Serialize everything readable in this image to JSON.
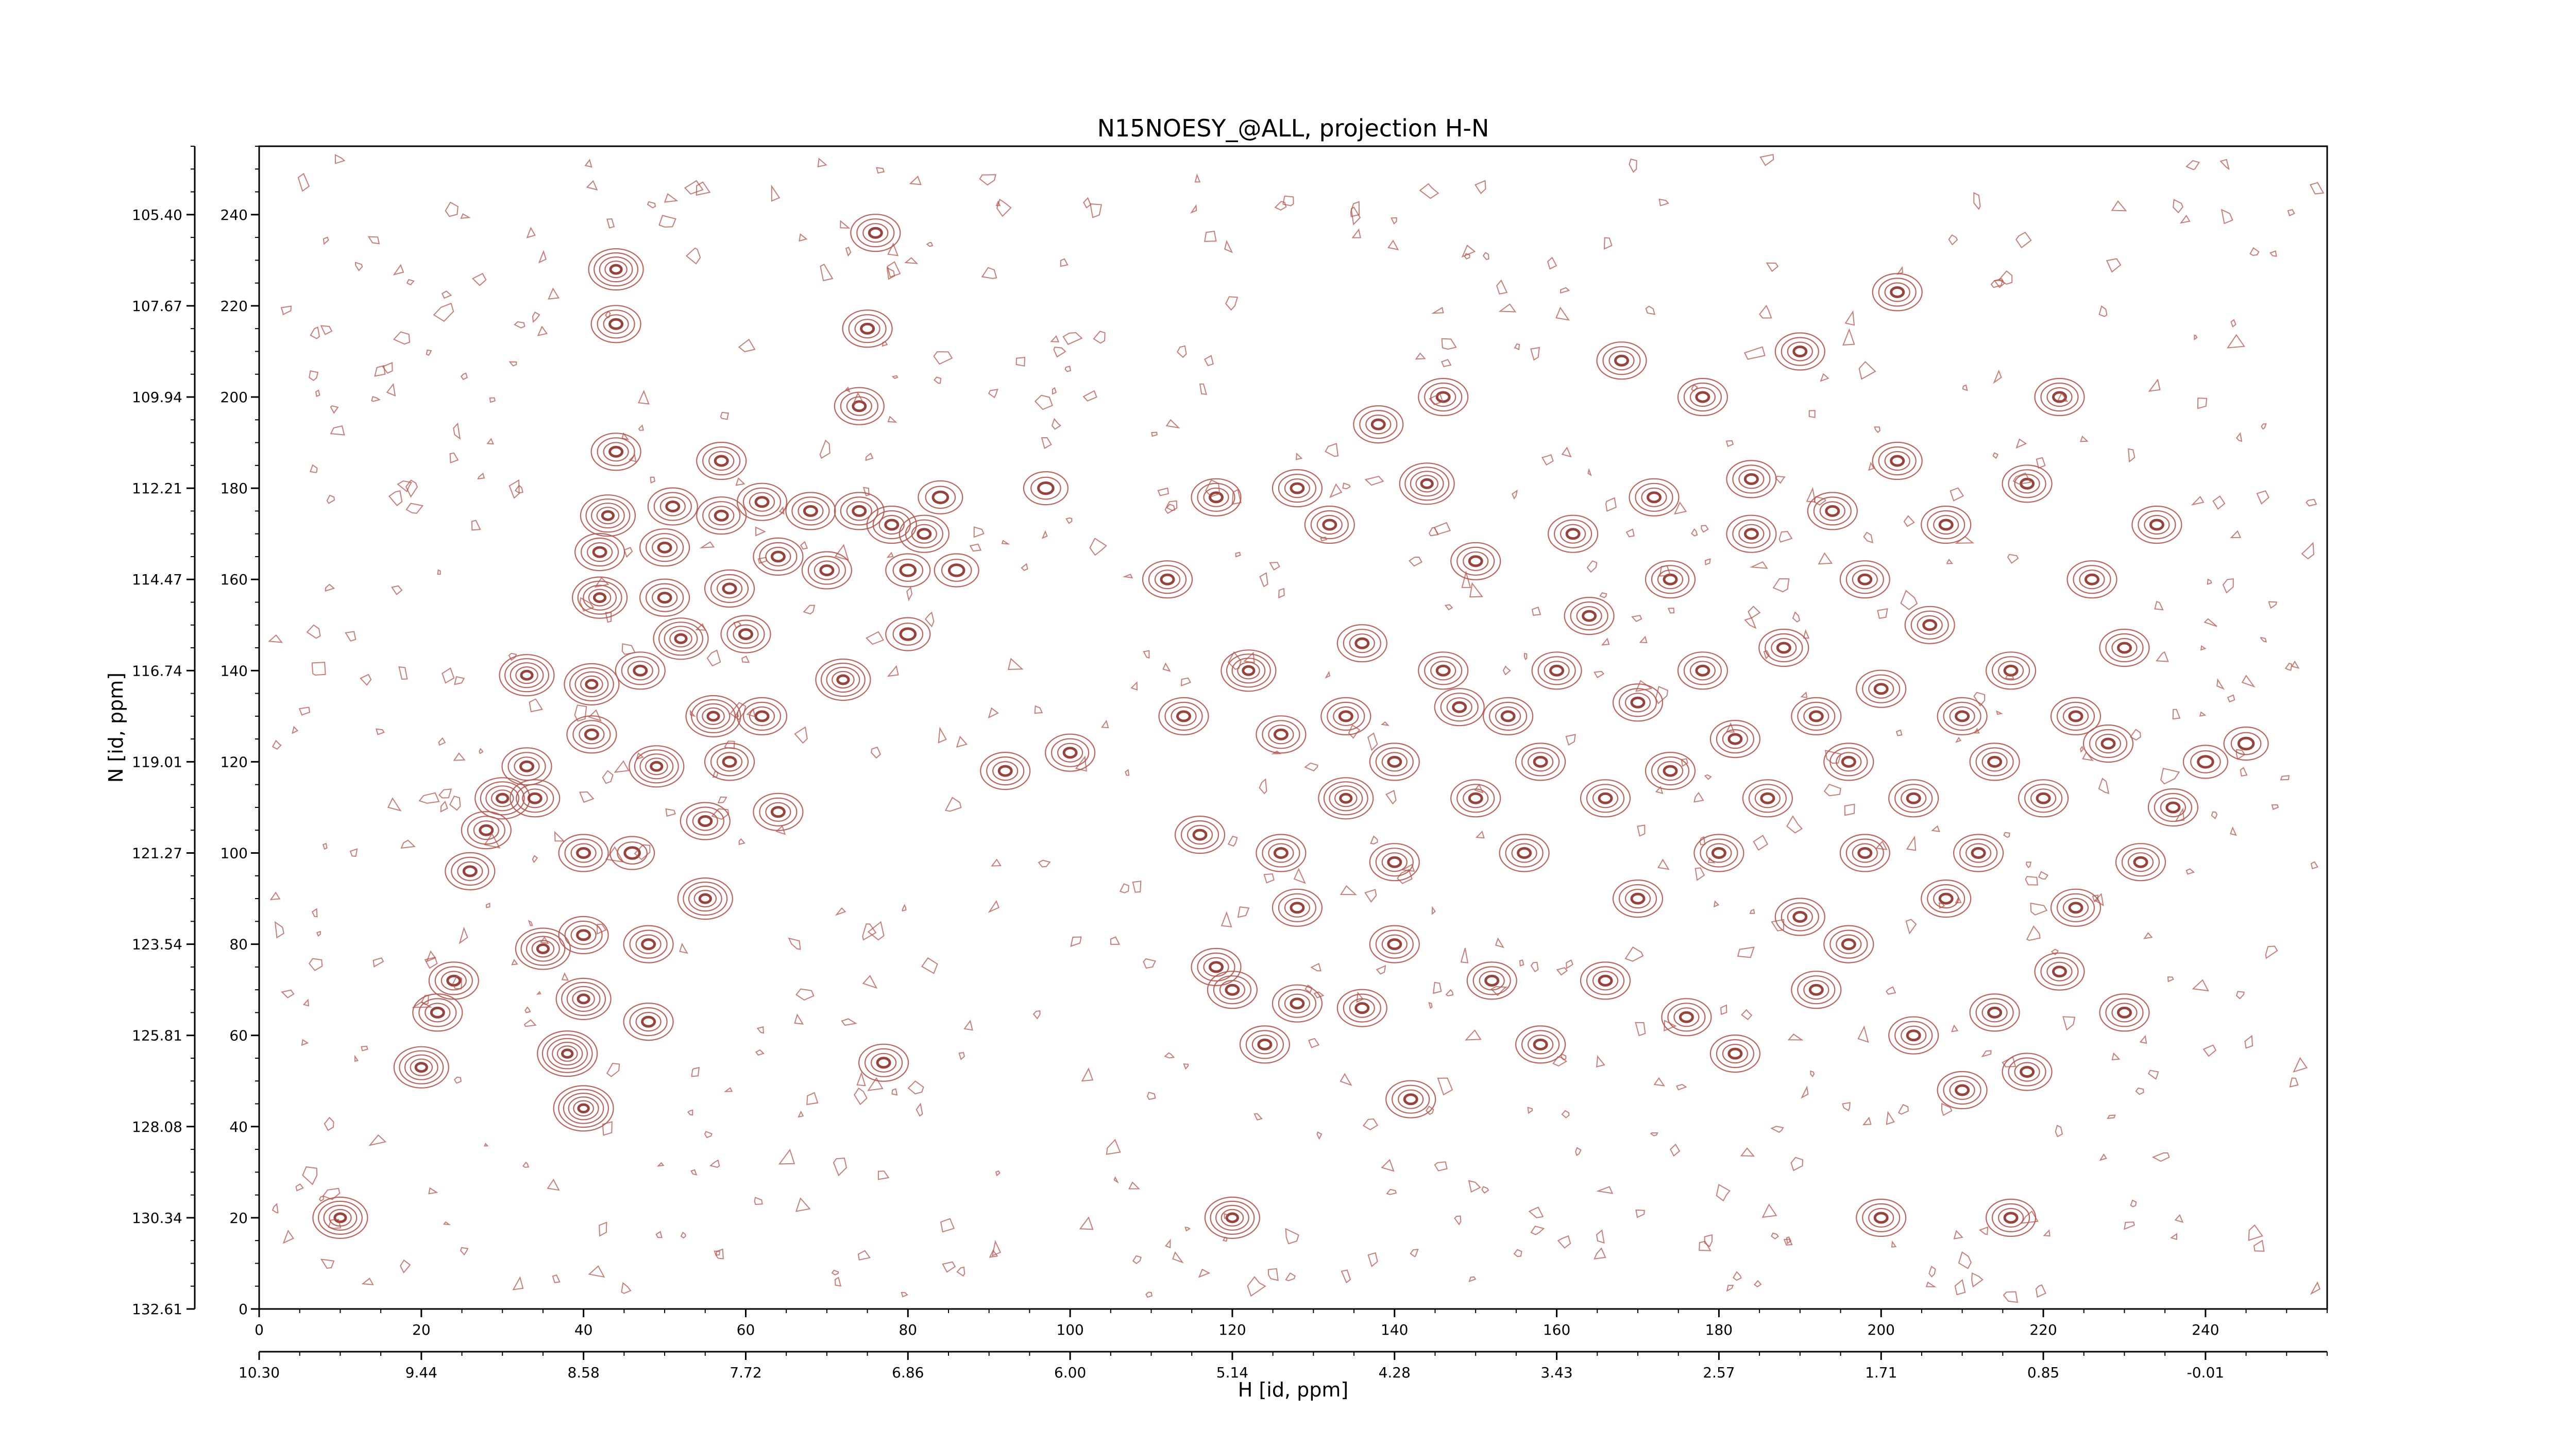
{
  "chart_data": {
    "type": "contour",
    "title": "N15NOESY_@ALL, projection H-N",
    "xlabel_bottom": "H [id, ppm]",
    "ylabel_left": "N [id, ppm]",
    "x_index_ticks": [
      0,
      20,
      40,
      60,
      80,
      100,
      120,
      140,
      160,
      180,
      200,
      220,
      240
    ],
    "x_index_range": [
      0,
      255
    ],
    "y_index_ticks": [
      0,
      20,
      40,
      60,
      80,
      100,
      120,
      140,
      160,
      180,
      200,
      220,
      240
    ],
    "y_index_range": [
      0,
      255
    ],
    "x_ppm_ticks": [
      "10.30",
      "9.44",
      "8.58",
      "7.72",
      "6.86",
      "6.00",
      "5.14",
      "4.28",
      "3.43",
      "2.57",
      "1.71",
      "0.85",
      "-0.01"
    ],
    "y_ppm_ticks": [
      "132.61",
      "130.34",
      "128.08",
      "125.81",
      "123.54",
      "121.27",
      "119.01",
      "116.74",
      "114.47",
      "112.21",
      "109.94",
      "107.67",
      "105.40"
    ],
    "contour_color": "#b5534a",
    "negative_contour_color": "#2e8b2e",
    "peaks": [
      [
        10,
        20,
        5
      ],
      [
        20,
        53,
        5
      ],
      [
        22,
        65,
        4
      ],
      [
        24,
        72,
        4
      ],
      [
        26,
        96,
        4
      ],
      [
        28,
        105,
        4
      ],
      [
        30,
        112,
        5
      ],
      [
        33,
        119,
        4
      ],
      [
        33,
        139,
        5
      ],
      [
        34,
        112,
        4
      ],
      [
        35,
        79,
        5
      ],
      [
        38,
        56,
        6
      ],
      [
        40,
        44,
        6
      ],
      [
        40,
        68,
        5
      ],
      [
        40,
        82,
        4
      ],
      [
        40,
        100,
        4
      ],
      [
        41,
        126,
        4
      ],
      [
        41,
        137,
        5
      ],
      [
        42,
        156,
        5
      ],
      [
        42,
        166,
        4
      ],
      [
        43,
        174,
        5
      ],
      [
        44,
        188,
        4
      ],
      [
        44,
        216,
        4
      ],
      [
        44,
        228,
        5
      ],
      [
        46,
        100,
        3
      ],
      [
        47,
        140,
        4
      ],
      [
        48,
        63,
        4
      ],
      [
        48,
        80,
        4
      ],
      [
        49,
        119,
        5
      ],
      [
        50,
        156,
        4
      ],
      [
        50,
        167,
        4
      ],
      [
        51,
        176,
        4
      ],
      [
        52,
        147,
        5
      ],
      [
        55,
        90,
        5
      ],
      [
        55,
        107,
        4
      ],
      [
        56,
        130,
        5
      ],
      [
        57,
        174,
        4
      ],
      [
        57,
        186,
        4
      ],
      [
        58,
        120,
        4
      ],
      [
        58,
        158,
        4
      ],
      [
        60,
        148,
        4
      ],
      [
        62,
        130,
        4
      ],
      [
        62,
        177,
        4
      ],
      [
        64,
        165,
        4
      ],
      [
        64,
        109,
        4
      ],
      [
        68,
        175,
        4
      ],
      [
        70,
        162,
        4
      ],
      [
        72,
        138,
        5
      ],
      [
        74,
        175,
        4
      ],
      [
        74,
        198,
        4
      ],
      [
        75,
        215,
        4
      ],
      [
        76,
        236,
        4
      ],
      [
        77,
        54,
        4
      ],
      [
        78,
        172,
        4
      ],
      [
        80,
        148,
        3
      ],
      [
        80,
        162,
        3
      ],
      [
        82,
        170,
        4
      ],
      [
        84,
        178,
        3
      ],
      [
        86,
        162,
        3
      ],
      [
        92,
        118,
        4
      ],
      [
        97,
        180,
        3
      ],
      [
        100,
        122,
        4
      ],
      [
        112,
        160,
        4
      ],
      [
        114,
        130,
        4
      ],
      [
        116,
        104,
        4
      ],
      [
        118,
        178,
        4
      ],
      [
        118,
        75,
        4
      ],
      [
        120,
        70,
        4
      ],
      [
        120,
        20,
        5
      ],
      [
        122,
        140,
        5
      ],
      [
        124,
        58,
        4
      ],
      [
        126,
        126,
        4
      ],
      [
        126,
        100,
        4
      ],
      [
        128,
        180,
        4
      ],
      [
        128,
        88,
        4
      ],
      [
        128,
        67,
        4
      ],
      [
        132,
        172,
        4
      ],
      [
        134,
        130,
        4
      ],
      [
        134,
        112,
        5
      ],
      [
        136,
        146,
        4
      ],
      [
        136,
        66,
        4
      ],
      [
        138,
        194,
        4
      ],
      [
        140,
        120,
        4
      ],
      [
        140,
        98,
        4
      ],
      [
        140,
        80,
        4
      ],
      [
        142,
        46,
        4
      ],
      [
        144,
        181,
        5
      ],
      [
        146,
        140,
        4
      ],
      [
        146,
        200,
        4
      ],
      [
        148,
        132,
        4
      ],
      [
        150,
        112,
        4
      ],
      [
        150,
        164,
        4
      ],
      [
        152,
        72,
        4
      ],
      [
        154,
        130,
        4
      ],
      [
        156,
        100,
        4
      ],
      [
        158,
        120,
        4
      ],
      [
        158,
        58,
        4
      ],
      [
        160,
        140,
        4
      ],
      [
        162,
        170,
        4
      ],
      [
        164,
        152,
        4
      ],
      [
        166,
        112,
        4
      ],
      [
        166,
        72,
        4
      ],
      [
        168,
        208,
        4
      ],
      [
        170,
        133,
        4
      ],
      [
        170,
        90,
        4
      ],
      [
        172,
        178,
        4
      ],
      [
        174,
        118,
        4
      ],
      [
        174,
        160,
        4
      ],
      [
        176,
        64,
        4
      ],
      [
        178,
        140,
        4
      ],
      [
        178,
        200,
        4
      ],
      [
        180,
        100,
        4
      ],
      [
        182,
        125,
        4
      ],
      [
        182,
        56,
        4
      ],
      [
        184,
        170,
        4
      ],
      [
        184,
        182,
        4
      ],
      [
        186,
        112,
        4
      ],
      [
        188,
        145,
        4
      ],
      [
        190,
        86,
        4
      ],
      [
        190,
        210,
        4
      ],
      [
        192,
        130,
        4
      ],
      [
        192,
        70,
        4
      ],
      [
        194,
        175,
        4
      ],
      [
        196,
        120,
        4
      ],
      [
        196,
        80,
        4
      ],
      [
        198,
        100,
        4
      ],
      [
        198,
        160,
        4
      ],
      [
        200,
        136,
        4
      ],
      [
        200,
        20,
        4
      ],
      [
        202,
        186,
        4
      ],
      [
        202,
        223,
        4
      ],
      [
        204,
        112,
        4
      ],
      [
        204,
        60,
        4
      ],
      [
        206,
        150,
        4
      ],
      [
        208,
        90,
        4
      ],
      [
        208,
        172,
        4
      ],
      [
        210,
        130,
        4
      ],
      [
        210,
        48,
        4
      ],
      [
        212,
        100,
        4
      ],
      [
        214,
        120,
        4
      ],
      [
        214,
        65,
        4
      ],
      [
        216,
        140,
        4
      ],
      [
        216,
        20,
        4
      ],
      [
        218,
        181,
        4
      ],
      [
        218,
        52,
        4
      ],
      [
        220,
        112,
        4
      ],
      [
        222,
        200,
        4
      ],
      [
        222,
        74,
        4
      ],
      [
        224,
        130,
        4
      ],
      [
        224,
        88,
        4
      ],
      [
        226,
        160,
        4
      ],
      [
        228,
        124,
        4
      ],
      [
        230,
        145,
        4
      ],
      [
        230,
        65,
        4
      ],
      [
        232,
        98,
        4
      ],
      [
        234,
        172,
        4
      ],
      [
        236,
        110,
        4
      ],
      [
        240,
        120,
        3
      ],
      [
        245,
        124,
        3
      ]
    ]
  }
}
